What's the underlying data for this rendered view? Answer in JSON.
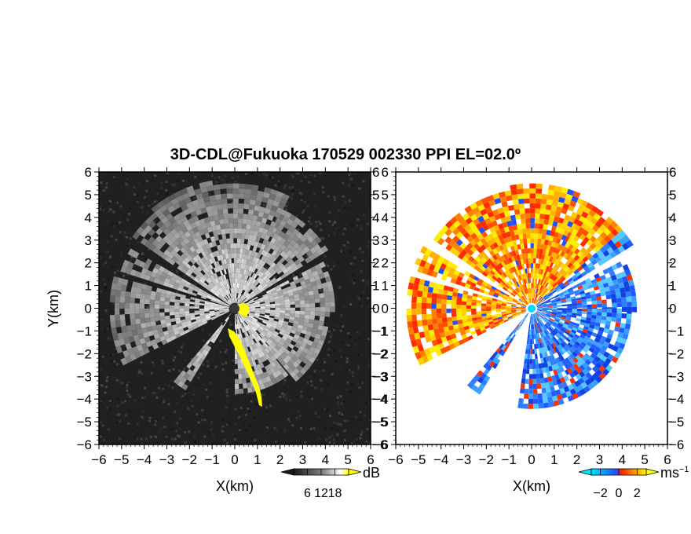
{
  "title": "3D-CDL@Fukuoka 170529 002330 PPI EL=02.0º",
  "chart_data": [
    {
      "type": "heatmap",
      "panel": "reflectivity",
      "xlabel": "X(km)",
      "ylabel": "Y(km)",
      "xlim": [
        -6,
        6
      ],
      "ylim": [
        -6,
        6
      ],
      "xticks": [
        "−6",
        "−5",
        "−4",
        "−3",
        "−2",
        "−1",
        "0",
        "1",
        "2",
        "3",
        "4",
        "5",
        "6"
      ],
      "yticks": [
        "6",
        "5",
        "4",
        "3",
        "2",
        "1",
        "0",
        "−1",
        "−2",
        "−3",
        "−4",
        "−5",
        "−6"
      ],
      "colorbar": {
        "unit": "dB",
        "ticks": [
          "6",
          "12",
          "18"
        ],
        "range": [
          0,
          24
        ],
        "colors": [
          "#1a1a1a",
          "#ffffff",
          "#ffff00"
        ]
      },
      "radar_site": [
        0,
        0
      ]
    },
    {
      "type": "heatmap",
      "panel": "doppler-velocity",
      "xlabel": "X(km)",
      "xlim": [
        -6,
        6
      ],
      "ylim": [
        -6,
        6
      ],
      "xticks": [
        "−6",
        "−5",
        "−4",
        "−3",
        "−2",
        "−1",
        "0",
        "1",
        "2",
        "3",
        "4",
        "5",
        "6"
      ],
      "yticks": [
        "6",
        "5",
        "4",
        "3",
        "2",
        "1",
        "0",
        "−1",
        "−2",
        "−3",
        "−4",
        "−5",
        "−6"
      ],
      "colorbar": {
        "unit": "ms",
        "unit_exp": "−1",
        "ticks": [
          "−2",
          "0",
          "2"
        ],
        "range": [
          -3,
          3
        ],
        "colors": [
          "#00e5ff",
          "#1e64ff",
          "#ff2000",
          "#ffff00"
        ]
      },
      "radar_site": [
        0,
        0
      ]
    }
  ]
}
